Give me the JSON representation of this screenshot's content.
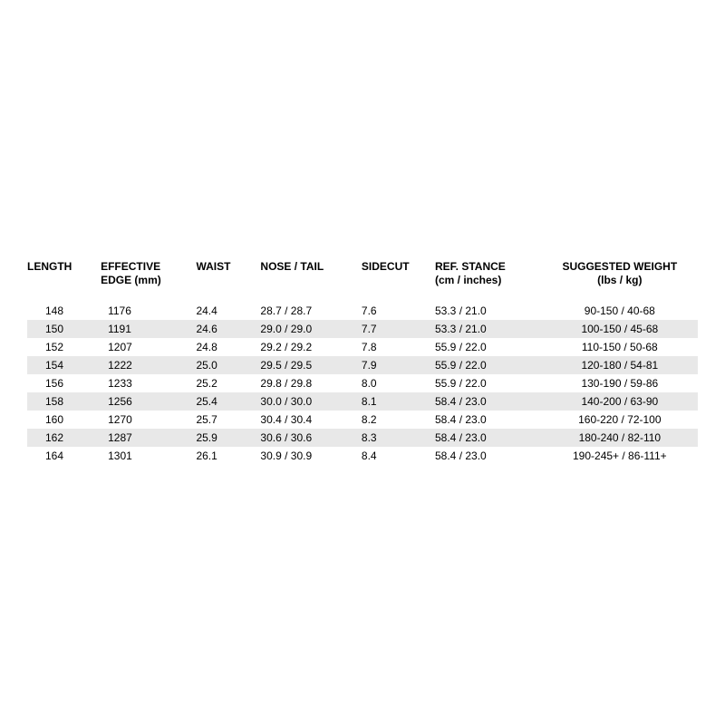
{
  "table": {
    "type": "table",
    "background_color": "#ffffff",
    "stripe_color": "#e8e8e8",
    "text_color": "#000000",
    "font_size_header": 12,
    "font_size_body": 12,
    "columns": [
      {
        "key": "length",
        "label": "LENGTH",
        "sub": "",
        "class": "c-length"
      },
      {
        "key": "edge",
        "label": "EFFECTIVE",
        "sub": "EDGE (mm)",
        "class": "c-edge"
      },
      {
        "key": "waist",
        "label": "WAIST",
        "sub": "",
        "class": "c-waist"
      },
      {
        "key": "nosetail",
        "label": "NOSE / TAIL",
        "sub": "",
        "class": "c-nt"
      },
      {
        "key": "sidecut",
        "label": "SIDECUT",
        "sub": "",
        "class": "c-sidecut"
      },
      {
        "key": "stance",
        "label": "REF. STANCE",
        "sub": "(cm / inches)",
        "class": "c-stance"
      },
      {
        "key": "weight",
        "label": "SUGGESTED WEIGHT",
        "sub": "(lbs / kg)",
        "class": "c-weight"
      }
    ],
    "rows": [
      [
        "148",
        "1176",
        "24.4",
        "28.7 / 28.7",
        "7.6",
        "53.3 / 21.0",
        "90-150 / 40-68"
      ],
      [
        "150",
        "1191",
        "24.6",
        "29.0 / 29.0",
        "7.7",
        "53.3 / 21.0",
        "100-150 / 45-68"
      ],
      [
        "152",
        "1207",
        "24.8",
        "29.2 / 29.2",
        "7.8",
        "55.9 / 22.0",
        "110-150 / 50-68"
      ],
      [
        "154",
        "1222",
        "25.0",
        "29.5 / 29.5",
        "7.9",
        "55.9 / 22.0",
        "120-180 / 54-81"
      ],
      [
        "156",
        "1233",
        "25.2",
        "29.8 / 29.8",
        "8.0",
        "55.9 / 22.0",
        "130-190 / 59-86"
      ],
      [
        "158",
        "1256",
        "25.4",
        "30.0 / 30.0",
        "8.1",
        "58.4 / 23.0",
        "140-200 / 63-90"
      ],
      [
        "160",
        "1270",
        "25.7",
        "30.4 / 30.4",
        "8.2",
        "58.4 / 23.0",
        "160-220 / 72-100"
      ],
      [
        "162",
        "1287",
        "25.9",
        "30.6 / 30.6",
        "8.3",
        "58.4 / 23.0",
        "180-240 / 82-110"
      ],
      [
        "164",
        "1301",
        "26.1",
        "30.9 / 30.9",
        "8.4",
        "58.4 / 23.0",
        "190-245+ / 86-111+"
      ]
    ],
    "stripe_row_indices": [
      1,
      3,
      5,
      7
    ]
  }
}
